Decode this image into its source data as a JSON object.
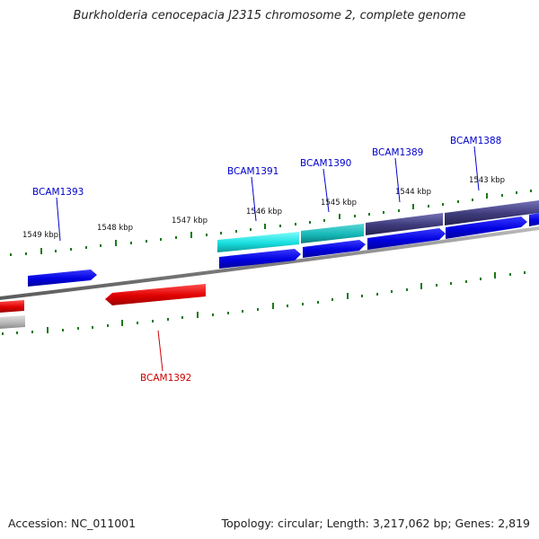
{
  "header": {
    "title": "Burkholderia cenocepacia J2315 chromosome 2, complete genome"
  },
  "footer": {
    "accession": "Accession: NC_011001",
    "topology": "Topology: circular; Length: 3,217,062 bp; Genes: 2,819"
  },
  "ruler_labels": [
    "1549 kbp",
    "1548 kbp",
    "1547 kbp",
    "1546 kbp",
    "1545 kbp",
    "1544 kbp",
    "1543 kbp"
  ],
  "genes": [
    {
      "name": "BCAM1393",
      "color": "#0000cc"
    },
    {
      "name": "BCAM1391",
      "color": "#0000cc"
    },
    {
      "name": "BCAM1390",
      "color": "#0000cc"
    },
    {
      "name": "BCAM1389",
      "color": "#0000cc"
    },
    {
      "name": "BCAM1388",
      "color": "#0000cc"
    },
    {
      "name": "BCAM1392",
      "color": "#cc0000"
    }
  ],
  "colors": {
    "forward_gene": "#0000e6",
    "reverse_gene": "#e60000",
    "cyan_feature": "#19dede",
    "teal_feature": "#16b8b8",
    "slate_feature": "#3d3a7a",
    "backbone": "#808080",
    "tick": "#1a7a1a"
  }
}
